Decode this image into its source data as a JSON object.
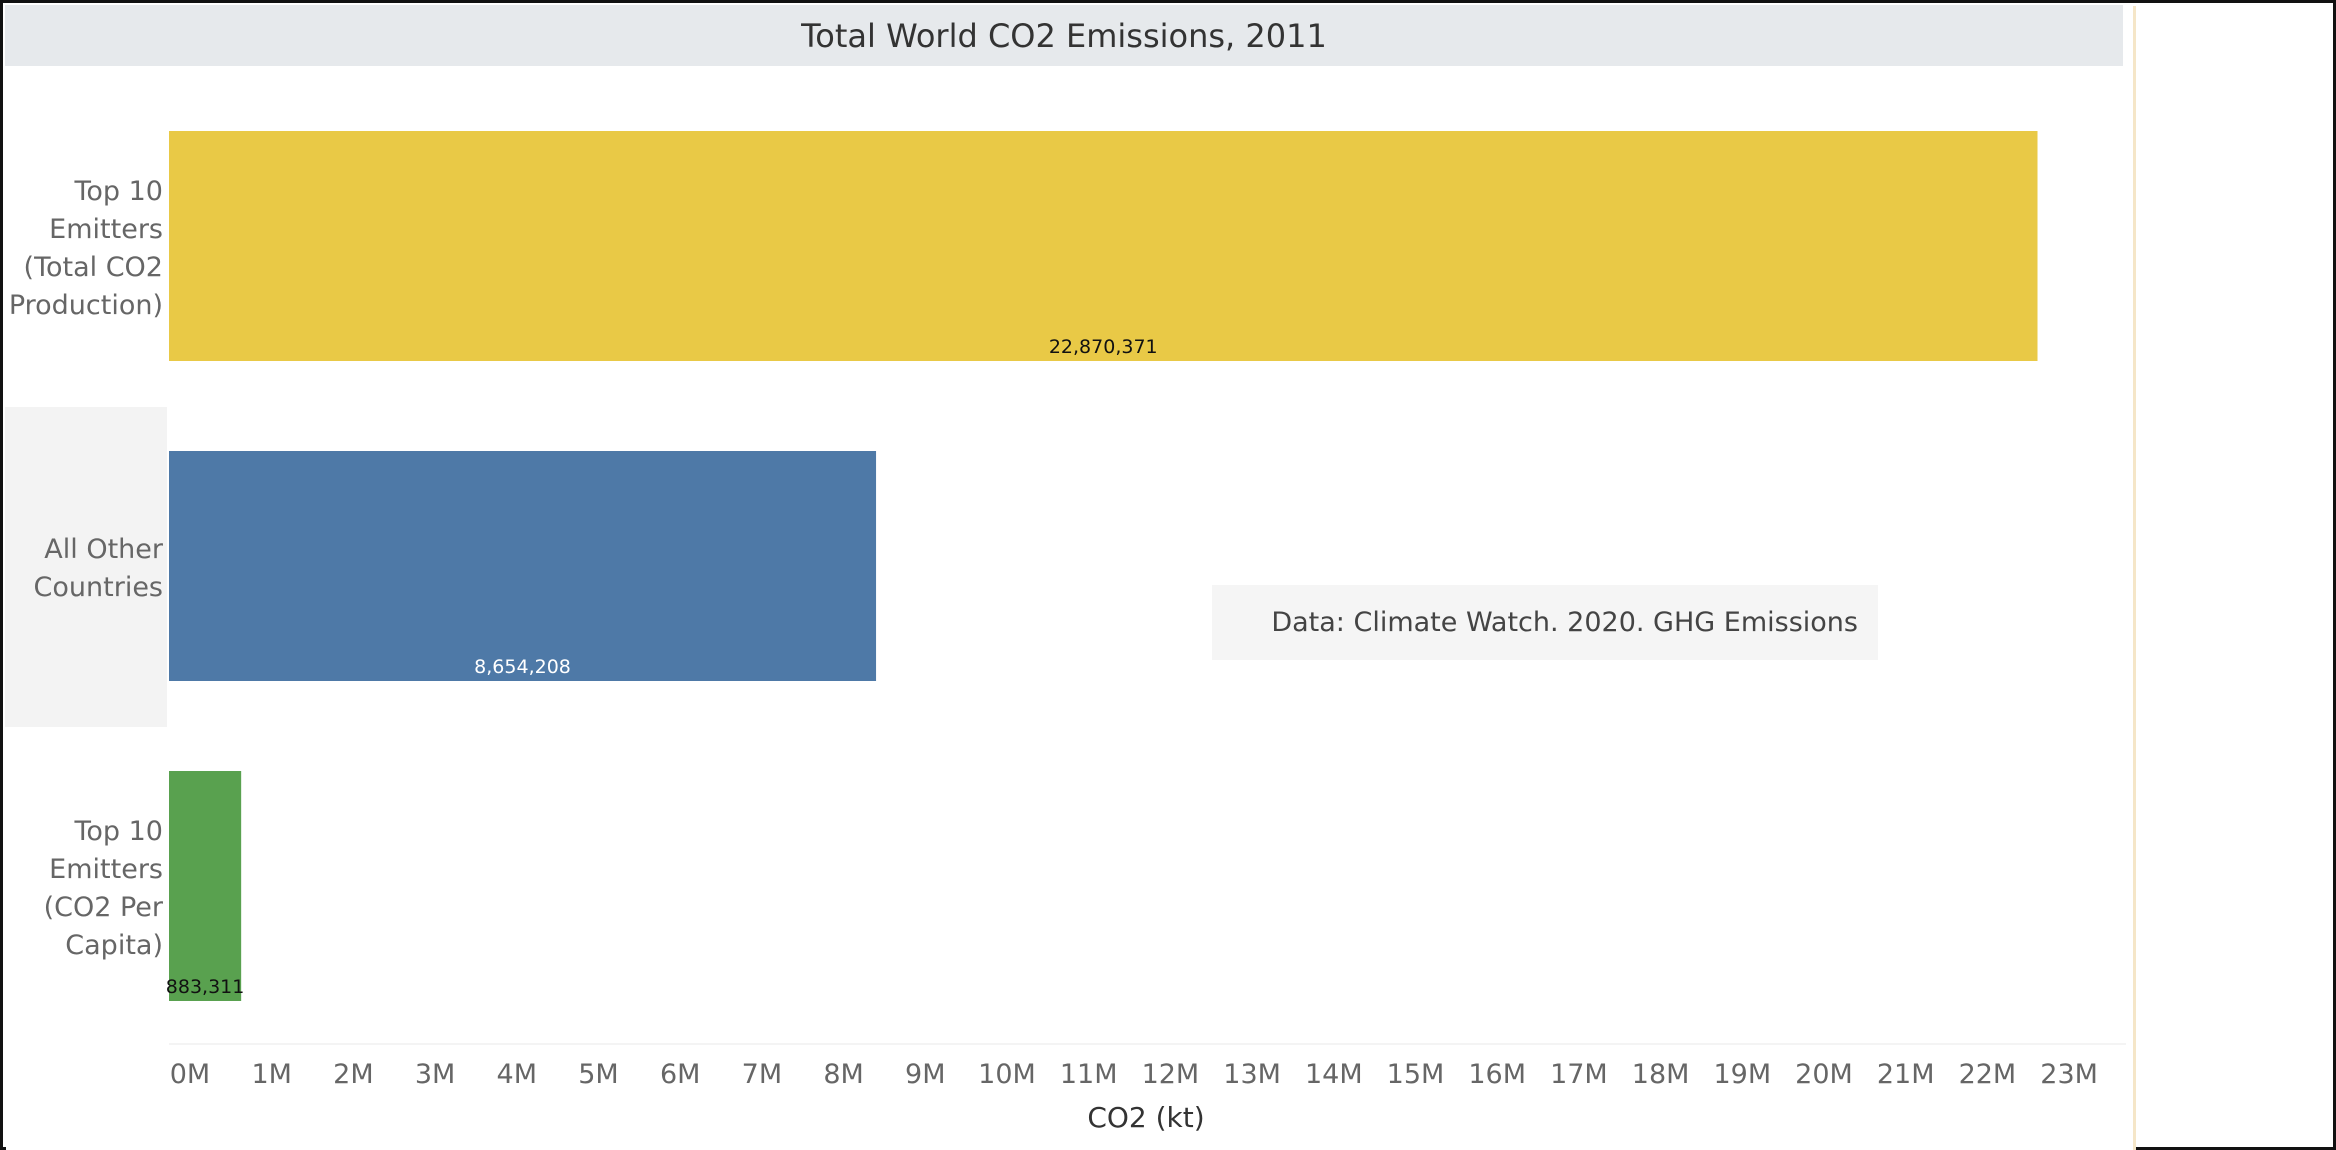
{
  "chart_data": {
    "type": "bar",
    "orientation": "horizontal",
    "title": "Total World CO2 Emissions, 2011",
    "xlabel": "CO2 (kt)",
    "ylabel": "",
    "xlim": [
      0,
      24000000
    ],
    "x_ticks": [
      "0M",
      "1M",
      "2M",
      "3M",
      "4M",
      "5M",
      "6M",
      "7M",
      "8M",
      "9M",
      "10M",
      "11M",
      "12M",
      "13M",
      "14M",
      "15M",
      "16M",
      "17M",
      "18M",
      "19M",
      "20M",
      "21M",
      "22M",
      "23M"
    ],
    "categories": [
      [
        "Top 10",
        "Emitters",
        "(Total CO2",
        "Production)"
      ],
      [
        "All Other",
        "Countries"
      ],
      [
        "Top 10",
        "Emitters",
        "(CO2 Per",
        "Capita)"
      ]
    ],
    "values": [
      22870371,
      8654208,
      883311
    ],
    "data_labels": [
      "22,870,371",
      "8,654,208",
      "883,311"
    ],
    "colors": [
      "#e9c946",
      "#4e79a7",
      "#59a14f"
    ],
    "data_label_colors": [
      "#111111",
      "#ffffff",
      "#111111"
    ],
    "row_bands": [
      "#ffffff",
      "#f3f3f3",
      "#ffffff"
    ],
    "annotation": "Data: Climate Watch. 2020. GHG Emissions",
    "grid": false
  }
}
